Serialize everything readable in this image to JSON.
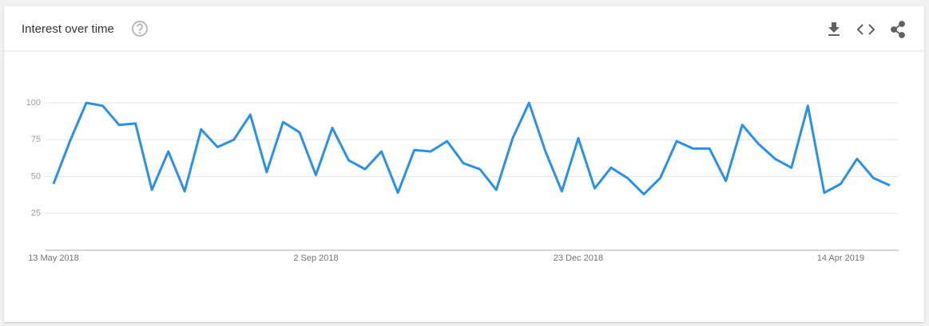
{
  "chart_data": {
    "type": "line",
    "title": "Interest over time",
    "categories": [
      "13 May 2018",
      null,
      null,
      null,
      null,
      null,
      null,
      null,
      null,
      null,
      null,
      null,
      null,
      null,
      null,
      null,
      "2 Sep 2018",
      null,
      null,
      null,
      null,
      null,
      null,
      null,
      null,
      null,
      null,
      null,
      null,
      null,
      null,
      null,
      "23 Dec 2018",
      null,
      null,
      null,
      null,
      null,
      null,
      null,
      null,
      null,
      null,
      null,
      null,
      null,
      null,
      null,
      "14 Apr 2019",
      null,
      null,
      null
    ],
    "values": [
      45,
      74,
      100,
      98,
      85,
      86,
      41,
      67,
      40,
      82,
      70,
      75,
      92,
      53,
      87,
      80,
      51,
      83,
      61,
      55,
      67,
      39,
      68,
      67,
      74,
      59,
      55,
      41,
      76,
      100,
      67,
      40,
      76,
      42,
      56,
      49,
      38,
      49,
      74,
      69,
      69,
      47,
      85,
      72,
      62,
      56,
      98,
      39,
      45,
      62,
      49,
      44
    ],
    "color": "#2b91e6",
    "ylim": [
      0,
      100
    ],
    "yticks": [
      25,
      50,
      75,
      100
    ],
    "grid": true
  }
}
